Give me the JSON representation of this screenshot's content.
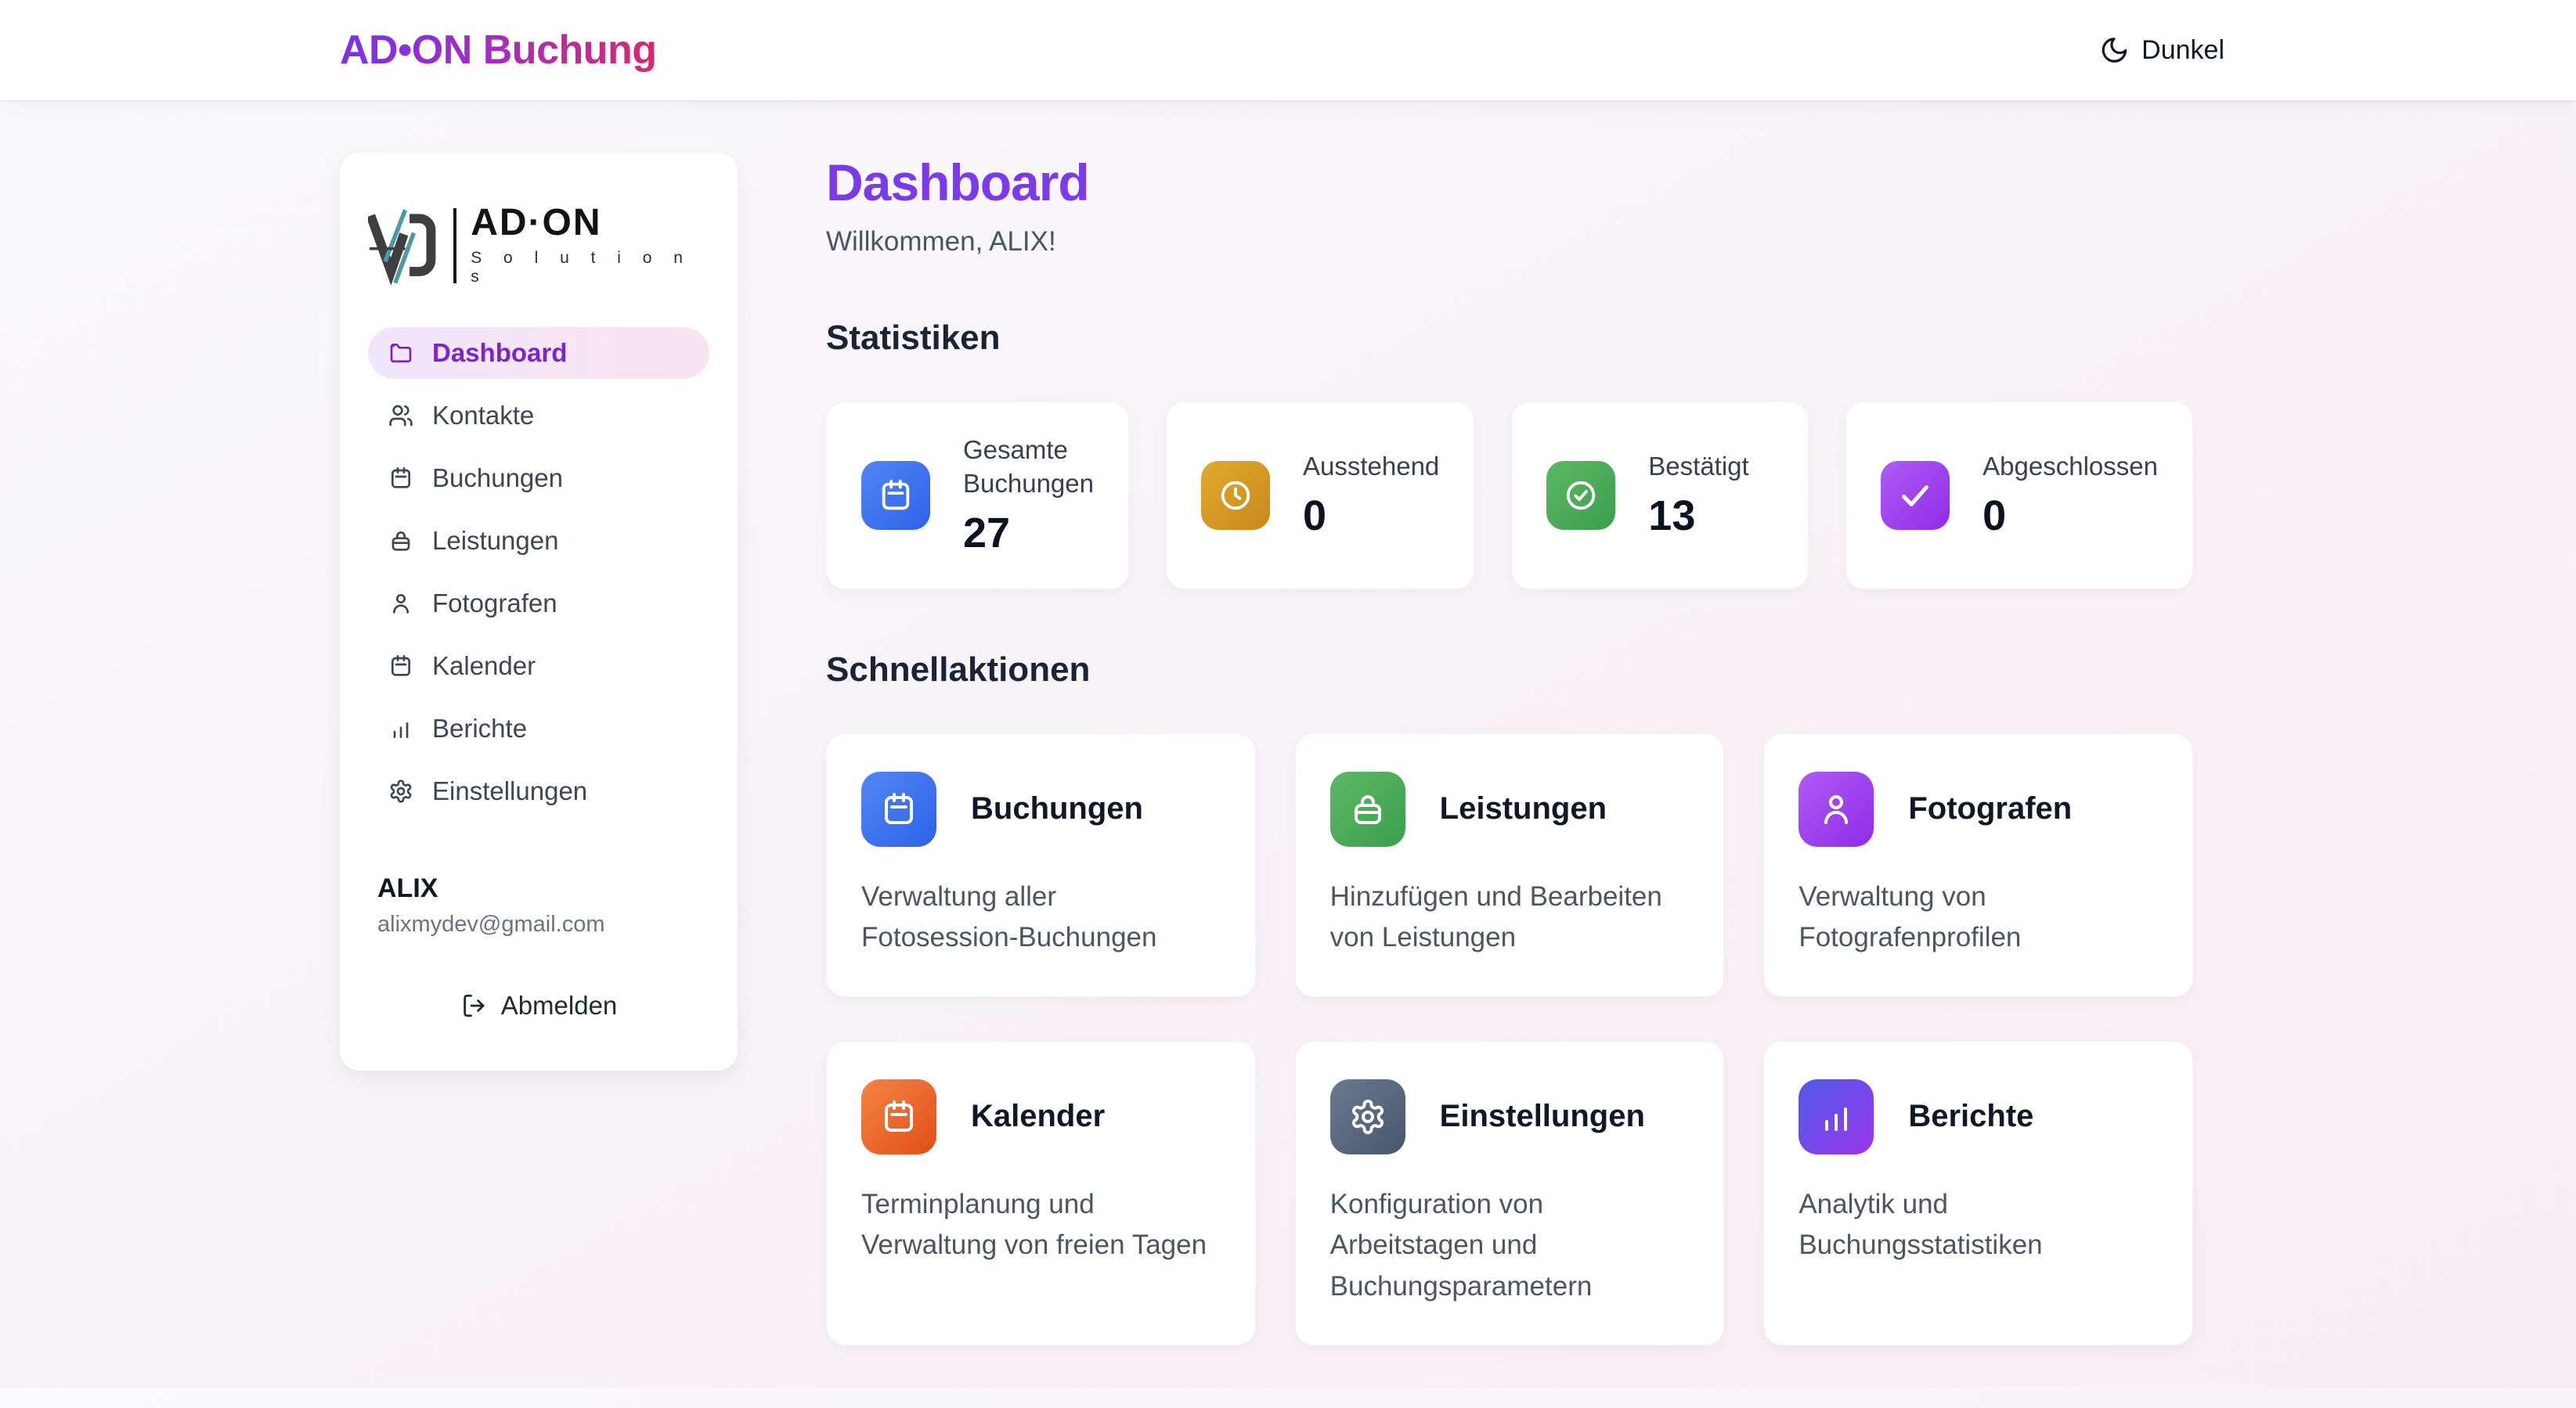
{
  "header": {
    "brand": "AD•ON Buchung",
    "theme_toggle": {
      "label": "Dunkel",
      "icon": "moon-icon"
    }
  },
  "sidebar": {
    "logo": {
      "name": "AD·ON",
      "subtitle": "S o l u t i o n s",
      "monogram_icon": "vd-monogram-icon"
    },
    "items": [
      {
        "label": "Dashboard",
        "icon": "folder-icon",
        "active": true
      },
      {
        "label": "Kontakte",
        "icon": "users-icon",
        "active": false
      },
      {
        "label": "Buchungen",
        "icon": "calendar-icon",
        "active": false
      },
      {
        "label": "Leistungen",
        "icon": "briefcase-icon",
        "active": false
      },
      {
        "label": "Fotografen",
        "icon": "user-icon",
        "active": false
      },
      {
        "label": "Kalender",
        "icon": "calendar-icon",
        "active": false
      },
      {
        "label": "Berichte",
        "icon": "bar-chart-icon",
        "active": false
      },
      {
        "label": "Einstellungen",
        "icon": "gear-icon",
        "active": false
      }
    ],
    "user": {
      "name": "ALIX",
      "email": "alixmydev@gmail.com"
    },
    "logout": {
      "label": "Abmelden",
      "icon": "logout-icon"
    }
  },
  "main": {
    "title": "Dashboard",
    "welcome": "Willkommen, ALIX!",
    "stats_heading": "Statistiken",
    "stats": [
      {
        "label": "Gesamte Buchungen",
        "value": "27",
        "icon": "calendar-icon",
        "color_from": "#5286f5",
        "color_to": "#2e62e8"
      },
      {
        "label": "Ausstehend",
        "value": "0",
        "icon": "clock-icon",
        "color_from": "#e2aa2e",
        "color_to": "#c9881a"
      },
      {
        "label": "Bestätigt",
        "value": "13",
        "icon": "check-circle-icon",
        "color_from": "#5bba64",
        "color_to": "#3c9d4d"
      },
      {
        "label": "Abgeschlossen",
        "value": "0",
        "icon": "check-icon",
        "color_from": "#b05cf5",
        "color_to": "#8f2be8"
      }
    ],
    "actions_heading": "Schnellaktionen",
    "actions": [
      {
        "title": "Buchungen",
        "description": "Verwaltung aller Fotosession-Buchungen",
        "icon": "calendar-icon",
        "color_from": "#5286f5",
        "color_to": "#2e62e8"
      },
      {
        "title": "Leistungen",
        "description": "Hinzufügen und Bearbeiten von Leistungen",
        "icon": "briefcase-icon",
        "color_from": "#5bba64",
        "color_to": "#3c9d4d"
      },
      {
        "title": "Fotografen",
        "description": "Verwaltung von Fotografenprofilen",
        "icon": "user-icon",
        "color_from": "#b05cf5",
        "color_to": "#8f2be8"
      },
      {
        "title": "Kalender",
        "description": "Terminplanung und Verwaltung von freien Tagen",
        "icon": "calendar-icon",
        "color_from": "#f58445",
        "color_to": "#e04e17"
      },
      {
        "title": "Einstellungen",
        "description": "Konfiguration von Arbeitstagen und Buchungsparametern",
        "icon": "gear-icon",
        "color_from": "#6b7a90",
        "color_to": "#46566b"
      },
      {
        "title": "Berichte",
        "description": "Analytik und Buchungsstatistiken",
        "icon": "bar-chart-icon",
        "color_from": "#4f5be8",
        "color_to": "#9a35ec"
      }
    ]
  }
}
